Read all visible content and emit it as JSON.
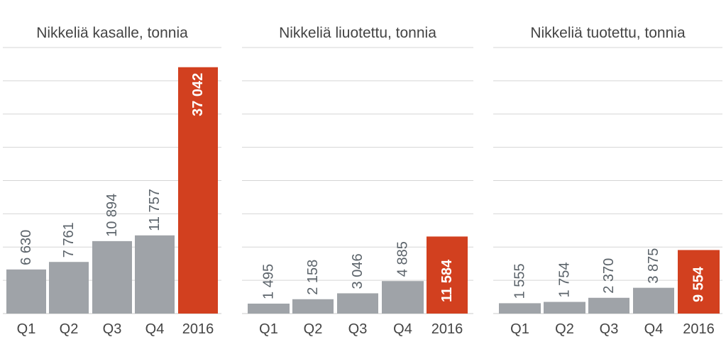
{
  "colors": {
    "grey_bar": "#9fa3a8",
    "red_bar": "#d2401f",
    "grid": "#d5d5d5",
    "text": "#444444",
    "label_grey": "#5b636a",
    "label_white": "#ffffff"
  },
  "chart_data": [
    {
      "type": "bar",
      "title": "Nikkeliä kasalle, tonnia",
      "categories": [
        "Q1",
        "Q2",
        "Q3",
        "Q4",
        "2016"
      ],
      "values": [
        6630,
        7761,
        10894,
        11757,
        37042
      ],
      "value_labels": [
        "6 630",
        "7 761",
        "10 894",
        "11 757",
        "37 042"
      ],
      "ylim": [
        0,
        40000
      ],
      "grid": true
    },
    {
      "type": "bar",
      "title": "Nikkeliä liuotettu, tonnia",
      "categories": [
        "Q1",
        "Q2",
        "Q3",
        "Q4",
        "2016"
      ],
      "values": [
        1495,
        2158,
        3046,
        4885,
        11584
      ],
      "value_labels": [
        "1 495",
        "2 158",
        "3 046",
        "4 885",
        "11 584"
      ],
      "ylim": [
        0,
        40000
      ],
      "grid": true
    },
    {
      "type": "bar",
      "title": "Nikkeliä tuotettu, tonnia",
      "categories": [
        "Q1",
        "Q2",
        "Q3",
        "Q4",
        "2016"
      ],
      "values": [
        1555,
        1754,
        2370,
        3875,
        9554
      ],
      "value_labels": [
        "1 555",
        "1 754",
        "2 370",
        "3 875",
        "9 554"
      ],
      "ylim": [
        0,
        40000
      ],
      "grid": true
    }
  ]
}
